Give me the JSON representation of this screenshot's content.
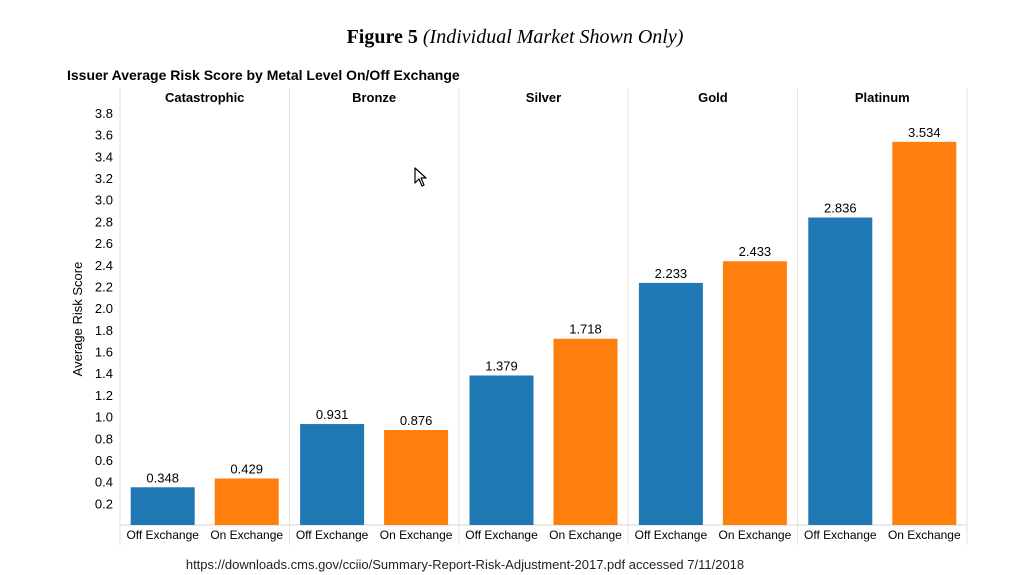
{
  "figure": {
    "label": "Figure 5",
    "note": "(Individual Market Shown Only)"
  },
  "source_note": "https://downloads.cms.gov/cciio/Summary-Report-Risk-Adjustment-2017.pdf accessed 7/11/2018",
  "colors": {
    "off": "#1f77b4",
    "on": "#ff7f0e"
  },
  "icons": {
    "cursor": "mouse-pointer-icon"
  },
  "chart_data": {
    "type": "bar",
    "title": "Issuer Average Risk Score by Metal Level On/Off Exchange",
    "ylabel": "Average Risk Score",
    "xlabel": "",
    "ylim": [
      0,
      3.8
    ],
    "yticks": [
      "0.2",
      "0.4",
      "0.6",
      "0.8",
      "1.0",
      "1.2",
      "1.4",
      "1.6",
      "1.8",
      "2.0",
      "2.2",
      "2.4",
      "2.6",
      "2.8",
      "3.0",
      "3.2",
      "3.4",
      "3.6",
      "3.8"
    ],
    "grid": false,
    "legend": "none",
    "groups": [
      {
        "name": "Catastrophic",
        "bars": [
          {
            "label": "Off Exchange",
            "value": 0.348,
            "display": "0.348"
          },
          {
            "label": "On Exchange",
            "value": 0.429,
            "display": "0.429"
          }
        ]
      },
      {
        "name": "Bronze",
        "bars": [
          {
            "label": "Off Exchange",
            "value": 0.931,
            "display": "0.931"
          },
          {
            "label": "On Exchange",
            "value": 0.876,
            "display": "0.876"
          }
        ]
      },
      {
        "name": "Silver",
        "bars": [
          {
            "label": "Off Exchange",
            "value": 1.379,
            "display": "1.379"
          },
          {
            "label": "On Exchange",
            "value": 1.718,
            "display": "1.718"
          }
        ]
      },
      {
        "name": "Gold",
        "bars": [
          {
            "label": "Off Exchange",
            "value": 2.233,
            "display": "2.233"
          },
          {
            "label": "On Exchange",
            "value": 2.433,
            "display": "2.433"
          }
        ]
      },
      {
        "name": "Platinum",
        "bars": [
          {
            "label": "Off Exchange",
            "value": 2.836,
            "display": "2.836"
          },
          {
            "label": "On Exchange",
            "value": 3.534,
            "display": "3.534"
          }
        ]
      }
    ]
  }
}
